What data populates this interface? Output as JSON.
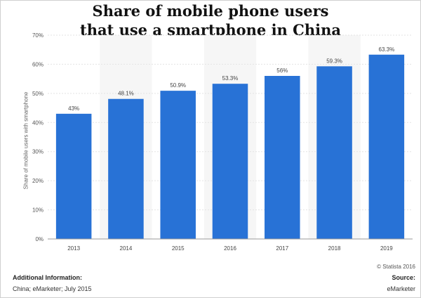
{
  "title_lines": [
    "Share of mobile phone users",
    "that use a smartphone in China"
  ],
  "chart_data": {
    "type": "bar",
    "categories": [
      "2013",
      "2014",
      "2015",
      "2016",
      "2017",
      "2018",
      "2019"
    ],
    "values": [
      43,
      48.1,
      50.9,
      53.3,
      56,
      59.3,
      63.3
    ],
    "value_labels": [
      "43%",
      "48.1%",
      "50.9%",
      "53.3%",
      "56%",
      "59.3%",
      "63.3%"
    ],
    "ylabel": "Share of mobile users with smartphone",
    "ylim": [
      0,
      70
    ],
    "yticks": [
      0,
      10,
      20,
      30,
      40,
      50,
      60,
      70
    ],
    "ytick_labels": [
      "0%",
      "10%",
      "20%",
      "30%",
      "40%",
      "50%",
      "60%",
      "70%"
    ],
    "grid": true,
    "bar_color": "#2872d6"
  },
  "footer": {
    "credit": "© Statista 2016",
    "additional_heading": "Additional Information:",
    "additional_text": "China; eMarketer; July 2015",
    "source_heading": "Source:",
    "source_text": "eMarketer"
  }
}
